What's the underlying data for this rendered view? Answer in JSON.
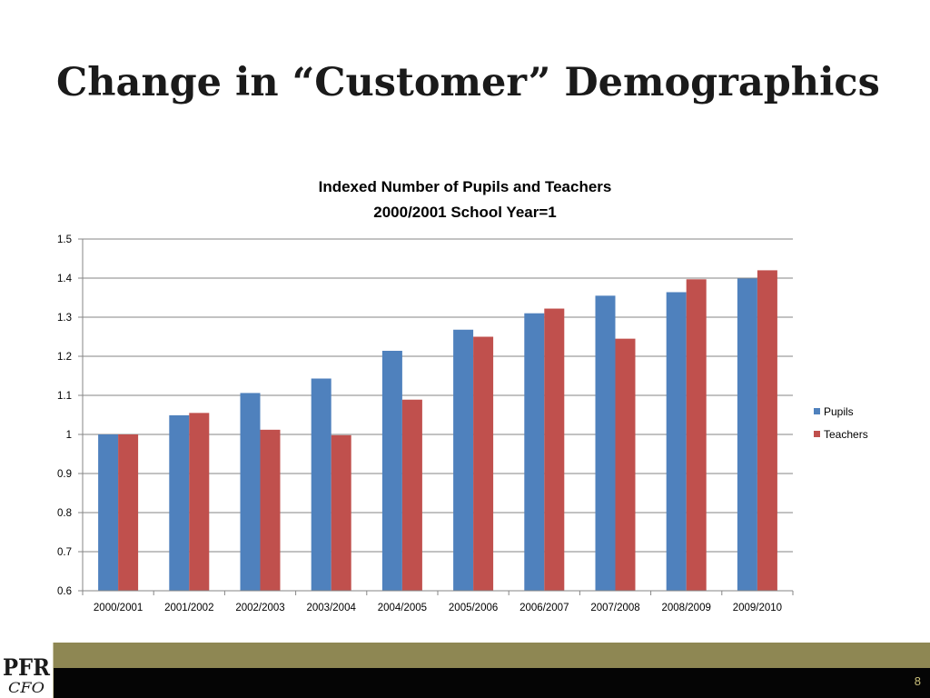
{
  "slide": {
    "title": "Change in “Customer” Demographics",
    "page_number": "8"
  },
  "logo": {
    "text_top": "PFR",
    "text_bottom": "CFO"
  },
  "colors": {
    "pupils": "#4f81bd",
    "teachers": "#c0504d",
    "gridline": "#868686",
    "footer_band": "#8e8753",
    "footer_bar": "#050505"
  },
  "chart_data": {
    "type": "bar",
    "title": "Indexed Number of Pupils and Teachers",
    "subtitle": "2000/2001 School Year=1",
    "categories": [
      "2000/2001",
      "2001/2002",
      "2002/2003",
      "2003/2004",
      "2004/2005",
      "2005/2006",
      "2006/2007",
      "2007/2008",
      "2008/2009",
      "2009/2010"
    ],
    "series": [
      {
        "name": "Pupils",
        "values": [
          1.0,
          1.049,
          1.106,
          1.143,
          1.214,
          1.268,
          1.31,
          1.355,
          1.364,
          1.399
        ]
      },
      {
        "name": "Teachers",
        "values": [
          1.0,
          1.055,
          1.012,
          0.998,
          1.089,
          1.25,
          1.322,
          1.245,
          1.397,
          1.42
        ]
      }
    ],
    "ylim": [
      0.6,
      1.5
    ],
    "yticks": [
      "0.6",
      "0.7",
      "0.8",
      "0.9",
      "1",
      "1.1",
      "1.2",
      "1.3",
      "1.4",
      "1.5"
    ],
    "grid": true,
    "legend_position": "right"
  }
}
